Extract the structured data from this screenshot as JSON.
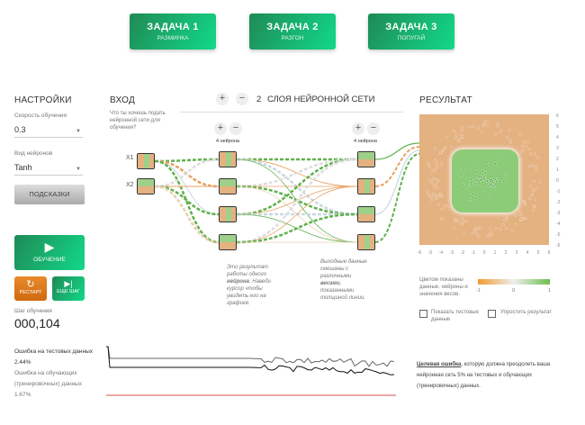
{
  "tasks": [
    {
      "title": "ЗАДАЧА 1",
      "subtitle": "РАЗМИНКА"
    },
    {
      "title": "ЗАДАЧА 2",
      "subtitle": "РАЗГОН"
    },
    {
      "title": "ЗАДАЧА 3",
      "subtitle": "ПОПУГАЙ"
    }
  ],
  "settings": {
    "title": "НАСТРОЙКИ",
    "lr_label": "Скорость обучения",
    "lr_value": "0.3",
    "act_label": "Вид нейронов",
    "act_value": "Tanh",
    "hints": "ПОДСКАЗКИ"
  },
  "controls": {
    "train": "ОБУЧЕНИЕ",
    "restart": "РЕСТАРТ",
    "step": "ЕЩЕ ШАГ",
    "step_label": "Шаг обучения",
    "step_value": "000,104"
  },
  "loss": {
    "test_label": "Ошибка на тестовых данных",
    "test_value": "2.44%",
    "train_label_1": "Ошибка на обучающих",
    "train_label_2": "(тренировочных) данных",
    "train_value": "1.67%"
  },
  "input": {
    "title": "ВХОД",
    "question": "Что ты хочешь подать нейронной сети для обучения?",
    "features": [
      "X1",
      "X2"
    ]
  },
  "network": {
    "layers_count": "2",
    "layers_label": "СЛОЯ НЕЙРОННОЙ СЕТИ",
    "layer_neurons": [
      "4 нейрона",
      "4 нейрона"
    ],
    "note1_a": "Это результат работы одного ",
    "note1_b": "нейрона",
    "note1_c": ". Наведи курсор чтобы увидеть его на графике.",
    "note2_a": "Выходные данные смешаны с различными ",
    "note2_b": "весами",
    "note2_c": ", показанными толщиной линии."
  },
  "output": {
    "title": "РЕСУЛЬТАТ",
    "axis_ticks": [
      "-6",
      "-5",
      "-4",
      "-3",
      "-2",
      "-1",
      "0",
      "1",
      "2",
      "3",
      "4",
      "5",
      "6"
    ],
    "legend_text": "Цветом показаны данные, нейроны и значения весов.",
    "legend_ticks": [
      "-1",
      "0",
      "1"
    ],
    "show_test": "Показать тестовые данные",
    "discretize": "Упростить результат",
    "target_a": "Целевая ошибка",
    "target_b": ", которую должна преодолеть ваша нейронная сеть 5% на тестовых и обучающих (тренировочных) данных."
  },
  "colors": {
    "green": "#5fb14c",
    "orange": "#e8a060",
    "bg_orange": "#e4b180",
    "target_line": "#d9534f",
    "accent": "#1aa86a"
  }
}
